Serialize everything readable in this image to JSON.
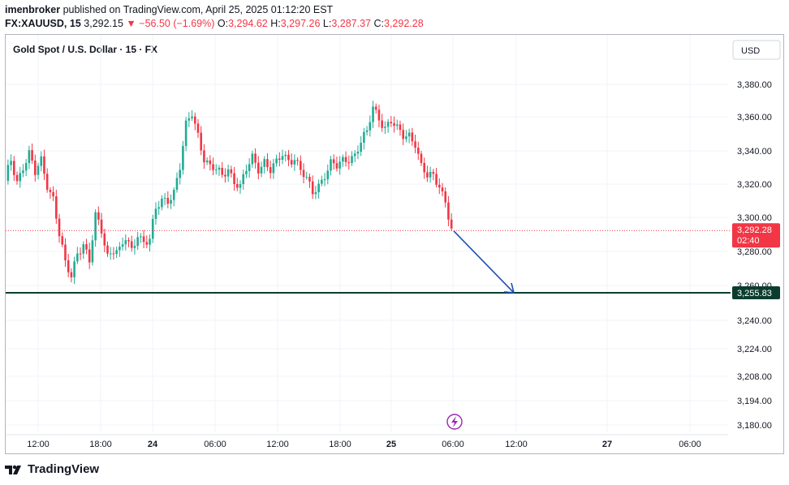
{
  "header": {
    "author": "imenbroker",
    "published_text": " published on TradingView.com, April 25, 2025 01:12:20 EST",
    "symbol": "FX:XAUUSD, 15",
    "last": "3,292.15",
    "change": "−56.50 (−1.69%)",
    "o_label": "O:",
    "o_value": "3,294.62",
    "h_label": "H:",
    "h_value": "3,297.26",
    "l_label": "L:",
    "l_value": "3,287.37",
    "c_label": "C:",
    "c_value": "3,292.28"
  },
  "chart_title": "Gold Spot / U.S. Dollar · 15 · FX",
  "currency_button": "USD",
  "footer": {
    "brand": "TradingView"
  },
  "colors": {
    "up": "#22ab94",
    "down": "#f23645",
    "level_line": "#0b3d2e",
    "arrow": "#1f4eb0",
    "event_icon": "#9c27b0"
  },
  "icons": {
    "event": "lightning-icon",
    "logo": "tradingview-logo-icon"
  },
  "chart_data": {
    "type": "candlestick",
    "title": "Gold Spot / U.S. Dollar · 15 · FX",
    "y_ticks": [
      3380,
      3360,
      3340,
      3320,
      3300,
      3280,
      3260,
      3240,
      3224,
      3208,
      3194,
      3180
    ],
    "y_tick_labels": [
      "3,380.00",
      "3,360.00",
      "3,340.00",
      "3,320.00",
      "3,300.00",
      "3,280.00",
      "3,260.00",
      "3,240.00",
      "3,224.00",
      "3,208.00",
      "3,194.00",
      "3,180.00"
    ],
    "x_tick_labels": [
      "12:00",
      "18:00",
      "24",
      "06:00",
      "12:00",
      "18:00",
      "25",
      "06:00",
      "12:00",
      "27",
      "06:00"
    ],
    "x_tick_bold": [
      "24",
      "25",
      "27"
    ],
    "current_price": {
      "value": 3292.28,
      "label": "3,292.28",
      "countdown": "02:40"
    },
    "horizontal_level": {
      "value": 3255.83,
      "label": "3,255.83"
    },
    "projection_arrow": {
      "from": 3292.0,
      "to": 3255.83
    },
    "price_path": [
      [
        0,
        3322
      ],
      [
        2,
        3334
      ],
      [
        4,
        3322
      ],
      [
        6,
        3331
      ],
      [
        8,
        3338
      ],
      [
        10,
        3326
      ],
      [
        12,
        3334
      ],
      [
        14,
        3320
      ],
      [
        16,
        3312
      ],
      [
        18,
        3290
      ],
      [
        20,
        3272
      ],
      [
        22,
        3265
      ],
      [
        24,
        3280
      ],
      [
        26,
        3285
      ],
      [
        28,
        3274
      ],
      [
        30,
        3300
      ],
      [
        32,
        3292
      ],
      [
        34,
        3278
      ],
      [
        36,
        3282
      ],
      [
        38,
        3280
      ],
      [
        40,
        3287
      ],
      [
        42,
        3280
      ],
      [
        44,
        3291
      ],
      [
        46,
        3286
      ],
      [
        48,
        3287
      ],
      [
        50,
        3304
      ],
      [
        52,
        3310
      ],
      [
        54,
        3311
      ],
      [
        56,
        3316
      ],
      [
        58,
        3330
      ],
      [
        60,
        3354
      ],
      [
        62,
        3362
      ],
      [
        64,
        3350
      ],
      [
        66,
        3336
      ],
      [
        68,
        3330
      ],
      [
        70,
        3328
      ],
      [
        72,
        3325
      ],
      [
        74,
        3330
      ],
      [
        76,
        3322
      ],
      [
        78,
        3318
      ],
      [
        80,
        3328
      ],
      [
        82,
        3336
      ],
      [
        84,
        3330
      ],
      [
        86,
        3334
      ],
      [
        88,
        3328
      ],
      [
        90,
        3332
      ],
      [
        92,
        3338
      ],
      [
        94,
        3335
      ],
      [
        96,
        3336
      ],
      [
        98,
        3328
      ],
      [
        100,
        3322
      ],
      [
        102,
        3315
      ],
      [
        104,
        3320
      ],
      [
        106,
        3326
      ],
      [
        108,
        3332
      ],
      [
        110,
        3330
      ],
      [
        112,
        3334
      ],
      [
        114,
        3336
      ],
      [
        116,
        3338
      ],
      [
        118,
        3345
      ],
      [
        120,
        3350
      ],
      [
        122,
        3366
      ],
      [
        124,
        3360
      ],
      [
        126,
        3354
      ],
      [
        128,
        3357
      ],
      [
        130,
        3352
      ],
      [
        132,
        3349
      ],
      [
        134,
        3350
      ],
      [
        136,
        3345
      ],
      [
        138,
        3330
      ],
      [
        140,
        3324
      ],
      [
        142,
        3325
      ],
      [
        144,
        3320
      ],
      [
        146,
        3310
      ],
      [
        148,
        3292
      ]
    ]
  }
}
